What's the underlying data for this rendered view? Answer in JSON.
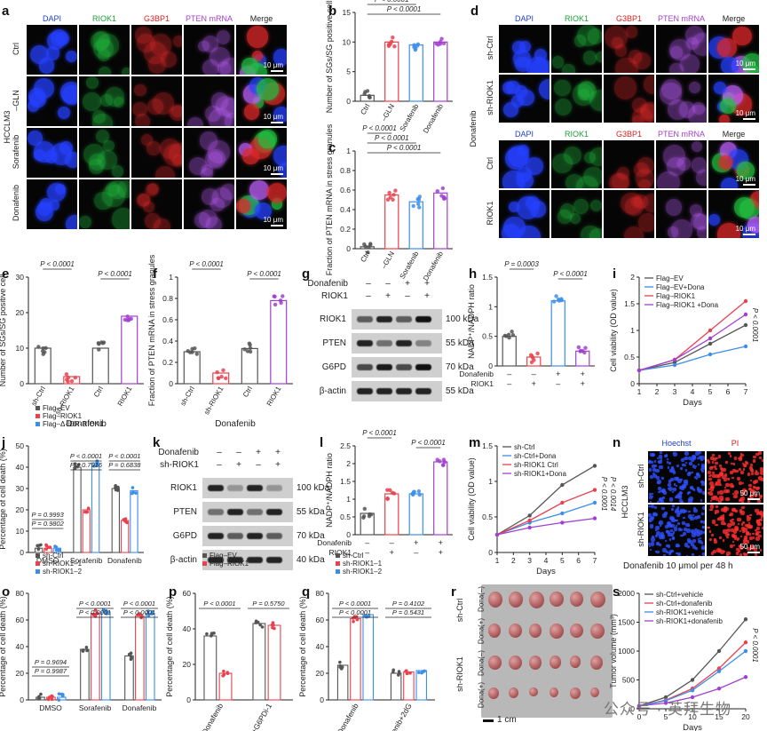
{
  "panels": {
    "a": {
      "label": "a",
      "cols": [
        "DAPI",
        "RIOK1",
        "G3BP1",
        "PTEN mRNA",
        "Merge"
      ],
      "col_colors": [
        "#1f3fd6",
        "#1f9e3a",
        "#d62222",
        "#a23fc8",
        "#222222"
      ],
      "rows": [
        "Ctrl",
        "–GLN",
        "Sorafenib",
        "Donafenib"
      ],
      "side": "HCCLM3",
      "scale": "10 μm"
    },
    "d": {
      "label": "d",
      "cols": [
        "DAPI",
        "RIOK1",
        "G3BP1",
        "PTEN mRNA",
        "Merge"
      ],
      "rows_top": [
        "sh-Ctrl",
        "sh-RIOK1"
      ],
      "rows_bottom": [
        "Ctrl",
        "RIOK1"
      ],
      "side": "Donafenib",
      "scale": "10 μm"
    },
    "n": {
      "label": "n",
      "cols": [
        "Hoechst",
        "PI"
      ],
      "rows": [
        "sh-Ctrl",
        "sh-RIOK1"
      ],
      "side": "HCCLM3",
      "scale": "50 μm",
      "caption": "Donafenib 10 μmol per 48 h"
    },
    "g": {
      "label": "g",
      "treat_labels": [
        "Donafenib",
        "RIOK1"
      ],
      "treat_signs": [
        [
          "–",
          "–",
          "+",
          "+"
        ],
        [
          "–",
          "+",
          "–",
          "+"
        ]
      ],
      "bands": [
        "RIOK1",
        "PTEN",
        "G6PD",
        "β-actin"
      ],
      "kda": [
        "100 kDa",
        "55 kDa",
        "70 kDa",
        "55 kDa"
      ]
    },
    "k": {
      "label": "k",
      "treat_labels": [
        "Donafenib",
        "sh-RIOK1"
      ],
      "treat_signs": [
        [
          "–",
          "–",
          "+",
          "+"
        ],
        [
          "–",
          "+",
          "–",
          "+"
        ]
      ],
      "bands": [
        "RIOK1",
        "PTEN",
        "G6PD",
        "β-actin"
      ],
      "kda": [
        "100 kDa",
        "55 kDa",
        "70 kDa",
        "40 kDa"
      ]
    },
    "r": {
      "label": "r",
      "rows": [
        "Dona(–)",
        "Dona(+)",
        "Dona(–)",
        "Dona(+)"
      ],
      "groups": [
        "sh-Ctrl",
        "sh-RIOK1"
      ],
      "scale": "1 cm"
    }
  },
  "chart_data": [
    {
      "id": "b",
      "type": "bar",
      "categories": [
        "Ctrl",
        "–GLN",
        "Sorafenib",
        "Donafenib"
      ],
      "values": [
        1,
        10,
        9.5,
        10
      ],
      "ylabel": "Number of SGs/SG positive cell",
      "yticks": [
        0,
        5,
        10,
        15
      ],
      "ylim": [
        0,
        15
      ],
      "colors": [
        "#555555",
        "#e8424e",
        "#3c8ee8",
        "#a040d0"
      ],
      "pvalues": [
        "P < 0.0001",
        "P < 0.0001",
        "P < 0.0001"
      ]
    },
    {
      "id": "c",
      "type": "bar",
      "categories": [
        "Ctrl",
        "–GLN",
        "Sorafenib",
        "Donafenib"
      ],
      "values": [
        0.02,
        0.55,
        0.48,
        0.57
      ],
      "ylabel": "Fraction of PTEN mRNA in stress granules",
      "yticks": [
        0,
        0.2,
        0.4,
        0.6,
        0.8,
        1.0
      ],
      "ylim": [
        0,
        1.0
      ],
      "colors": [
        "#555555",
        "#e8424e",
        "#3c8ee8",
        "#a040d0"
      ],
      "pvalues": [
        "P < 0.0001",
        "P < 0.0001",
        "P < 0.0001"
      ]
    },
    {
      "id": "e",
      "type": "bar",
      "categories": [
        "sh-Ctrl",
        "sh-RIOK1",
        "Ctrl",
        "RIOK1"
      ],
      "values": [
        10,
        2,
        10,
        19
      ],
      "ylabel": "Number of SGs/SG positive cell",
      "xlabel": "Donafenib",
      "yticks": [
        0,
        10,
        20,
        30
      ],
      "ylim": [
        0,
        30
      ],
      "colors": [
        "#555555",
        "#e8424e",
        "#555555",
        "#a040d0"
      ],
      "pvalues": [
        "P < 0.0001",
        "P < 0.0001"
      ]
    },
    {
      "id": "f",
      "type": "bar",
      "categories": [
        "sh-Ctrl",
        "sh-RIOK1",
        "Ctrl",
        "RIOK1"
      ],
      "values": [
        0.3,
        0.1,
        0.33,
        0.78
      ],
      "ylabel": "Fraction of PTEN mRNA in stress granules",
      "xlabel": "Donafenib",
      "yticks": [
        0,
        0.2,
        0.4,
        0.6,
        0.8,
        1.0
      ],
      "ylim": [
        0,
        1.0
      ],
      "colors": [
        "#555555",
        "#e8424e",
        "#555555",
        "#a040d0"
      ],
      "pvalues": [
        "P < 0.0001",
        "P < 0.0001"
      ]
    },
    {
      "id": "h",
      "type": "bar",
      "categories": [
        "1",
        "2",
        "3",
        "4"
      ],
      "values": [
        0.5,
        0.15,
        1.1,
        0.25
      ],
      "ylabel": "NADP⁺/NADPH ratio",
      "yticks": [
        0,
        0.5,
        1.0,
        1.5
      ],
      "ylim": [
        0,
        1.5
      ],
      "colors": [
        "#555555",
        "#e8424e",
        "#3c8ee8",
        "#a040d0"
      ],
      "pvalues": [
        "P = 0.0003",
        "P < 0.0001"
      ],
      "treat_labels": [
        "Donafenib",
        "RIOK1"
      ],
      "treat_signs": [
        [
          "–",
          "–",
          "+",
          "+"
        ],
        [
          "–",
          "+",
          "–",
          "+"
        ]
      ]
    },
    {
      "id": "l",
      "type": "bar",
      "categories": [
        "1",
        "2",
        "3",
        "4"
      ],
      "values": [
        0.6,
        1.15,
        1.15,
        2.05
      ],
      "ylabel": "NADP⁺/NADPH ratio",
      "yticks": [
        0,
        0.5,
        1.0,
        1.5,
        2.0,
        2.5
      ],
      "ylim": [
        0,
        2.5
      ],
      "colors": [
        "#555555",
        "#e8424e",
        "#3c8ee8",
        "#a040d0"
      ],
      "pvalues": [
        "P < 0.0001",
        "P < 0.0001"
      ],
      "treat_labels": [
        "Donafenib",
        "RIOK1"
      ],
      "treat_signs": [
        [
          "–",
          "–",
          "+",
          "+"
        ],
        [
          "–",
          "+",
          "–",
          "+"
        ]
      ]
    },
    {
      "id": "i",
      "type": "line",
      "x": [
        1,
        2,
        3,
        4,
        5,
        6,
        7
      ],
      "xlabel": "Days",
      "ylabel": "Cell viability (OD value)",
      "yticks": [
        0,
        0.5,
        1.0,
        1.5,
        2.0
      ],
      "ylim": [
        0,
        2.0
      ],
      "series": [
        {
          "name": "Flag–EV",
          "color": "#555555",
          "values": [
            0.25,
            null,
            0.4,
            null,
            0.75,
            null,
            1.1
          ]
        },
        {
          "name": "Flag–EV+Dona",
          "color": "#3c8ee8",
          "values": [
            0.25,
            null,
            0.35,
            null,
            0.55,
            null,
            0.7
          ]
        },
        {
          "name": "Flag–RIOK1",
          "color": "#e8424e",
          "values": [
            0.25,
            null,
            0.45,
            null,
            1.0,
            null,
            1.55
          ]
        },
        {
          "name": "Flag–RIOK1 +Dona",
          "color": "#a040d0",
          "values": [
            0.25,
            null,
            0.45,
            null,
            0.85,
            null,
            1.3
          ]
        }
      ],
      "pvalues": [
        "P < 0.0001"
      ]
    },
    {
      "id": "m",
      "type": "line",
      "x": [
        1,
        2,
        3,
        4,
        5,
        6,
        7
      ],
      "xlabel": "Days",
      "ylabel": "Cell viability (OD value)",
      "yticks": [
        0,
        0.5,
        1.0,
        1.5
      ],
      "ylim": [
        0,
        1.5
      ],
      "series": [
        {
          "name": "sh-Ctrl",
          "color": "#555555",
          "values": [
            0.25,
            null,
            0.52,
            null,
            0.95,
            null,
            1.22
          ]
        },
        {
          "name": "sh-Ctrl+Dona",
          "color": "#3c8ee8",
          "values": [
            0.25,
            null,
            0.42,
            null,
            0.55,
            null,
            0.7
          ]
        },
        {
          "name": "sh-RIOK1 Ctrl",
          "color": "#e8424e",
          "values": [
            0.25,
            null,
            0.45,
            null,
            0.7,
            null,
            0.88
          ]
        },
        {
          "name": "sh-RIOK1+Dona",
          "color": "#a040d0",
          "values": [
            0.25,
            null,
            0.35,
            null,
            0.42,
            null,
            0.48
          ]
        }
      ],
      "pvalues": [
        "P < 0.0001",
        "P < 0.0014"
      ]
    },
    {
      "id": "s",
      "type": "line",
      "x": [
        0,
        5,
        10,
        15,
        20
      ],
      "xlabel": "Days",
      "ylabel": "Tumor volume (mm³)",
      "yticks": [
        0,
        500,
        1000,
        1500,
        2000
      ],
      "ylim": [
        0,
        2000
      ],
      "series": [
        {
          "name": "sh-Ctrl+vehicle",
          "color": "#555555",
          "values": [
            50,
            200,
            500,
            1000,
            1550
          ]
        },
        {
          "name": "sh-Ctrl+donafenib",
          "color": "#e8424e",
          "values": [
            50,
            150,
            350,
            700,
            1150
          ]
        },
        {
          "name": "sh-RIOK1+vehicle",
          "color": "#3c8ee8",
          "values": [
            50,
            140,
            320,
            650,
            1000
          ]
        },
        {
          "name": "sh-RIOK1+donafenib",
          "color": "#a040d0",
          "values": [
            50,
            100,
            200,
            350,
            550
          ]
        }
      ],
      "pvalues": [
        "P < 0.0001"
      ]
    },
    {
      "id": "j",
      "type": "bar",
      "groups": [
        "DMSO",
        "Sorafenib",
        "Donafenib"
      ],
      "series": [
        {
          "name": "Flag–EV",
          "color": "#555555",
          "values": [
            2,
            40,
            30
          ]
        },
        {
          "name": "Flag–RIOK1",
          "color": "#e8424e",
          "values": [
            2,
            20,
            15
          ]
        },
        {
          "name": "Flag–Δ-IDR-RIOK1",
          "color": "#3c8ee8",
          "values": [
            2,
            42,
            29
          ]
        }
      ],
      "ylabel": "Percentage of cell death (%)",
      "yticks": [
        0,
        10,
        20,
        30,
        40,
        50
      ],
      "ylim": [
        0,
        50
      ],
      "pvalues": [
        "P = 0.9993",
        "P = 0.9802",
        "P < 0.0001",
        "P = 0.7916",
        "P < 0.0001",
        "P = 0.6838"
      ]
    },
    {
      "id": "o",
      "type": "bar",
      "groups": [
        "DMSO",
        "Sorafenib",
        "Donafenib"
      ],
      "series": [
        {
          "name": "sh-Ctrl",
          "color": "#555555",
          "values": [
            2,
            38,
            33
          ]
        },
        {
          "name": "sh-RIOK1–1",
          "color": "#e8424e",
          "values": [
            2,
            65,
            63
          ]
        },
        {
          "name": "sh-RIOK1–2",
          "color": "#3c8ee8",
          "values": [
            2,
            66,
            65
          ]
        }
      ],
      "ylabel": "Percentage of cell death (%)",
      "yticks": [
        0,
        20,
        40,
        60,
        80
      ],
      "ylim": [
        0,
        80
      ],
      "pvalues": [
        "P = 0.9694",
        "P = 0.9987",
        "P < 0.0001",
        "P < 0.0001",
        "P < 0.0001",
        "P < 0.0001"
      ]
    },
    {
      "id": "p",
      "type": "bar",
      "groups": [
        "Donafenib",
        "Donafenib+G6PDi-1"
      ],
      "series": [
        {
          "name": "Flag–EV",
          "color": "#555555",
          "values": [
            36,
            43
          ]
        },
        {
          "name": "Flag–RIOK1",
          "color": "#e8424e",
          "values": [
            15,
            42
          ]
        }
      ],
      "ylabel": "Percentage of cell death (%)",
      "yticks": [
        0,
        20,
        40,
        60
      ],
      "ylim": [
        0,
        60
      ],
      "pvalues": [
        "P < 0.0001",
        "P = 0.5750"
      ]
    },
    {
      "id": "q",
      "type": "bar",
      "groups": [
        "Donafenib",
        "Donafenib+2dG"
      ],
      "series": [
        {
          "name": "sh-Ctrl",
          "color": "#555555",
          "values": [
            26,
            20
          ]
        },
        {
          "name": "sh-RIOK1–1",
          "color": "#e8424e",
          "values": [
            61,
            21
          ]
        },
        {
          "name": "sh-RIOK1–2",
          "color": "#3c8ee8",
          "values": [
            64,
            22
          ]
        }
      ],
      "ylabel": "Percentage of cell death (%)",
      "yticks": [
        0,
        20,
        40,
        60,
        80
      ],
      "ylim": [
        0,
        80
      ],
      "pvalues": [
        "P < 0.0001",
        "P < 0.0001",
        "P = 0.4102",
        "P = 0.5431"
      ]
    }
  ],
  "watermark": "公众号 · 英拜生物"
}
